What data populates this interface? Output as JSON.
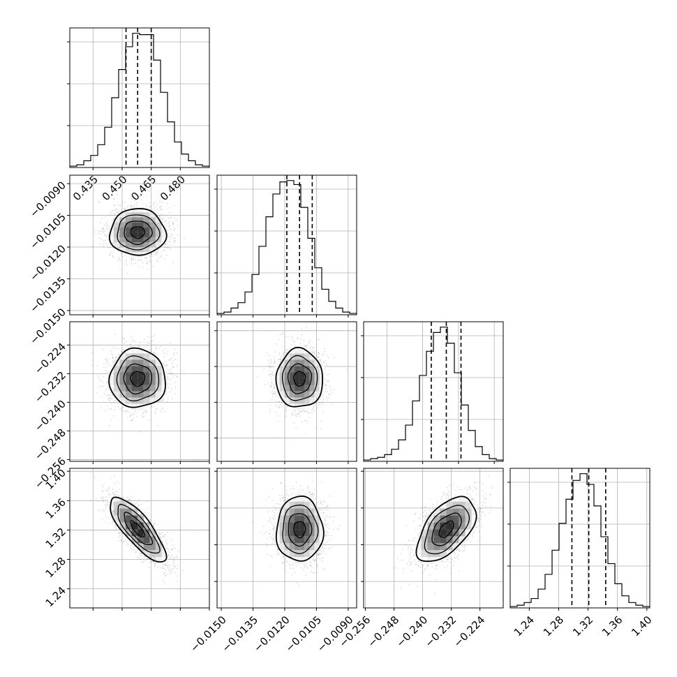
{
  "figure": {
    "type": "corner-plot",
    "grid": true,
    "background": "#ffffff"
  },
  "style": {
    "axis_color": "#000000",
    "grid_color": "#b0b0b0",
    "hist_color": "#000000",
    "quantile_line_style": "dashed",
    "scatter_color": "#888888",
    "density_cmap": [
      "#ffffff",
      "#000000"
    ]
  },
  "chart_data": [
    {
      "type": "histogram",
      "row": 0,
      "col": 0,
      "parameter": 0,
      "x_ticks": [
        "0.435",
        "0.450",
        "0.465",
        "0.480"
      ],
      "xlim": [
        0.423,
        0.495
      ],
      "bin_edges_range": [
        0.423,
        0.495
      ],
      "counts": [
        1,
        2,
        5,
        9,
        17,
        30,
        52,
        73,
        90,
        100,
        99,
        99,
        80,
        56,
        34,
        19,
        10,
        5,
        2,
        1
      ],
      "quantiles": [
        0.452,
        0.458,
        0.465
      ]
    },
    {
      "type": "scatter-density",
      "row": 1,
      "col": 0,
      "x_param": 0,
      "y_param": 1,
      "xlim": [
        0.423,
        0.495
      ],
      "ylim": [
        -0.0152,
        -0.0086
      ],
      "y_ticks": [
        "-0.0090",
        "-0.0105",
        "-0.0120",
        "-0.0135",
        "-0.0150"
      ],
      "mean": [
        0.458,
        -0.0113
      ],
      "sd": [
        0.0072,
        0.00055
      ],
      "corr": 0.0
    },
    {
      "type": "histogram",
      "row": 1,
      "col": 1,
      "parameter": 1,
      "xlim": [
        -0.0152,
        -0.0086
      ],
      "bin_edges_range": [
        -0.0152,
        -0.0086
      ],
      "counts": [
        1,
        2,
        5,
        9,
        17,
        30,
        51,
        73,
        90,
        99,
        100,
        97,
        80,
        57,
        35,
        19,
        10,
        5,
        2,
        1
      ],
      "quantiles": [
        -0.0119,
        -0.0113,
        -0.0107
      ]
    },
    {
      "type": "scatter-density",
      "row": 2,
      "col": 0,
      "x_param": 0,
      "y_param": 2,
      "xlim": [
        0.423,
        0.495
      ],
      "ylim": [
        -0.2565,
        -0.2175
      ],
      "y_ticks": [
        "-0.224",
        "-0.232",
        "-0.240",
        "-0.248",
        "-0.256"
      ],
      "mean": [
        0.458,
        -0.2334
      ],
      "sd": [
        0.0072,
        0.0041
      ],
      "corr": 0.0
    },
    {
      "type": "scatter-density",
      "row": 2,
      "col": 1,
      "x_param": 1,
      "y_param": 2,
      "xlim": [
        -0.0152,
        -0.0086
      ],
      "ylim": [
        -0.2565,
        -0.2175
      ],
      "mean": [
        -0.0113,
        -0.2334
      ],
      "sd": [
        0.00055,
        0.0041
      ],
      "corr": 0.0
    },
    {
      "type": "histogram",
      "row": 2,
      "col": 2,
      "parameter": 2,
      "xlim": [
        -0.2565,
        -0.2175
      ],
      "bin_edges_range": [
        -0.2565,
        -0.2175
      ],
      "counts": [
        1,
        2,
        3,
        5,
        9,
        16,
        27,
        45,
        64,
        82,
        96,
        100,
        88,
        66,
        42,
        23,
        11,
        5,
        2,
        1
      ],
      "quantiles": [
        -0.2376,
        -0.2334,
        -0.2293
      ]
    },
    {
      "type": "scatter-density",
      "row": 3,
      "col": 0,
      "x_param": 0,
      "y_param": 3,
      "xlim": [
        0.423,
        0.495
      ],
      "ylim": [
        1.214,
        1.404
      ],
      "y_ticks": [
        "1.40",
        "1.36",
        "1.32",
        "1.28",
        "1.24"
      ],
      "mean": [
        0.458,
        1.321
      ],
      "sd": [
        0.0072,
        0.022
      ],
      "corr": -0.8
    },
    {
      "type": "scatter-density",
      "row": 3,
      "col": 1,
      "x_param": 1,
      "y_param": 3,
      "xlim": [
        -0.0152,
        -0.0086
      ],
      "ylim": [
        1.214,
        1.404
      ],
      "x_ticks": [
        "-0.0150",
        "-0.0135",
        "-0.0120",
        "-0.0105",
        "-0.0090"
      ],
      "mean": [
        -0.0113,
        1.321
      ],
      "sd": [
        0.00055,
        0.022
      ],
      "corr": 0.0
    },
    {
      "type": "scatter-density",
      "row": 3,
      "col": 2,
      "x_param": 2,
      "y_param": 3,
      "xlim": [
        -0.2565,
        -0.2175
      ],
      "ylim": [
        1.214,
        1.404
      ],
      "x_ticks": [
        "-0.256",
        "-0.248",
        "-0.240",
        "-0.232",
        "-0.224"
      ],
      "mean": [
        -0.2334,
        1.321
      ],
      "sd": [
        0.0041,
        0.022
      ],
      "corr": 0.55
    },
    {
      "type": "histogram",
      "row": 3,
      "col": 3,
      "parameter": 3,
      "xlim": [
        1.214,
        1.404
      ],
      "x_ticks": [
        "1.24",
        "1.28",
        "1.32",
        "1.36",
        "1.40"
      ],
      "bin_edges_range": [
        1.214,
        1.404
      ],
      "counts": [
        1,
        2,
        4,
        7,
        14,
        25,
        43,
        63,
        81,
        95,
        100,
        92,
        76,
        53,
        33,
        18,
        9,
        4,
        2,
        1
      ],
      "quantiles": [
        1.298,
        1.321,
        1.344
      ]
    }
  ]
}
